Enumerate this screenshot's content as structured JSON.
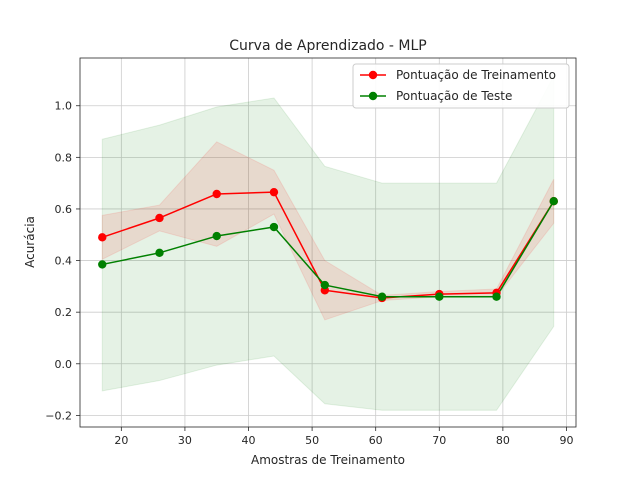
{
  "chart_data": {
    "type": "line",
    "title": "Curva de Aprendizado - MLP",
    "xlabel": "Amostras de Treinamento",
    "ylabel": "Acurácia",
    "x": [
      17,
      26,
      35,
      44,
      52,
      61,
      70,
      79,
      88
    ],
    "xlim": [
      13.5,
      91.5
    ],
    "ylim": [
      -0.245,
      1.185
    ],
    "xticks": [
      20,
      30,
      40,
      50,
      60,
      70,
      80,
      90
    ],
    "yticks": [
      -0.2,
      0.0,
      0.2,
      0.4,
      0.6,
      0.8,
      1.0
    ],
    "xtick_labels": [
      "20",
      "30",
      "40",
      "50",
      "60",
      "70",
      "80",
      "90"
    ],
    "ytick_labels": [
      "−0.2",
      "0.0",
      "0.2",
      "0.4",
      "0.6",
      "0.8",
      "1.0"
    ],
    "grid": true,
    "legend_position": "top-right",
    "series": [
      {
        "name": "Pontuação de Treinamento",
        "color": "#ff0000",
        "values": [
          0.49,
          0.565,
          0.658,
          0.665,
          0.285,
          0.255,
          0.27,
          0.275,
          0.63
        ],
        "band_lower": [
          0.405,
          0.515,
          0.455,
          0.58,
          0.17,
          0.245,
          0.26,
          0.26,
          0.545
        ],
        "band_upper": [
          0.575,
          0.615,
          0.86,
          0.75,
          0.4,
          0.265,
          0.28,
          0.29,
          0.715
        ]
      },
      {
        "name": "Pontuação de Teste",
        "color": "#008000",
        "values": [
          0.385,
          0.43,
          0.495,
          0.53,
          0.305,
          0.26,
          0.26,
          0.26,
          0.63
        ],
        "band_lower": [
          -0.105,
          -0.065,
          -0.005,
          0.03,
          -0.155,
          -0.18,
          -0.18,
          -0.18,
          0.145
        ],
        "band_upper": [
          0.87,
          0.925,
          0.995,
          1.03,
          0.765,
          0.7,
          0.7,
          0.7,
          1.115
        ]
      }
    ]
  }
}
